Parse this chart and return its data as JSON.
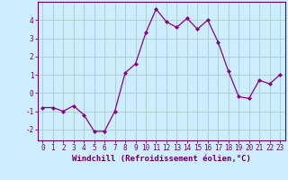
{
  "x": [
    0,
    1,
    2,
    3,
    4,
    5,
    6,
    7,
    8,
    9,
    10,
    11,
    12,
    13,
    14,
    15,
    16,
    17,
    18,
    19,
    20,
    21,
    22,
    23
  ],
  "y": [
    -0.8,
    -0.8,
    -1.0,
    -0.7,
    -1.2,
    -2.1,
    -2.1,
    -1.0,
    1.1,
    1.6,
    3.3,
    4.6,
    3.9,
    3.6,
    4.1,
    3.5,
    4.0,
    2.8,
    1.2,
    -0.2,
    -0.3,
    0.7,
    0.5,
    1.0
  ],
  "line_color": "#880088",
  "marker": "D",
  "marker_size": 2.0,
  "bg_color": "#cceeff",
  "grid_color": "#aacccc",
  "xlabel": "Windchill (Refroidissement éolien,°C)",
  "xlim": [
    -0.5,
    23.5
  ],
  "ylim": [
    -2.6,
    5.0
  ],
  "xticks": [
    0,
    1,
    2,
    3,
    4,
    5,
    6,
    7,
    8,
    9,
    10,
    11,
    12,
    13,
    14,
    15,
    16,
    17,
    18,
    19,
    20,
    21,
    22,
    23
  ],
  "yticks": [
    -2,
    -1,
    0,
    1,
    2,
    3,
    4
  ],
  "tick_label_size": 5.5,
  "xlabel_size": 6.5,
  "spine_color": "#660066"
}
